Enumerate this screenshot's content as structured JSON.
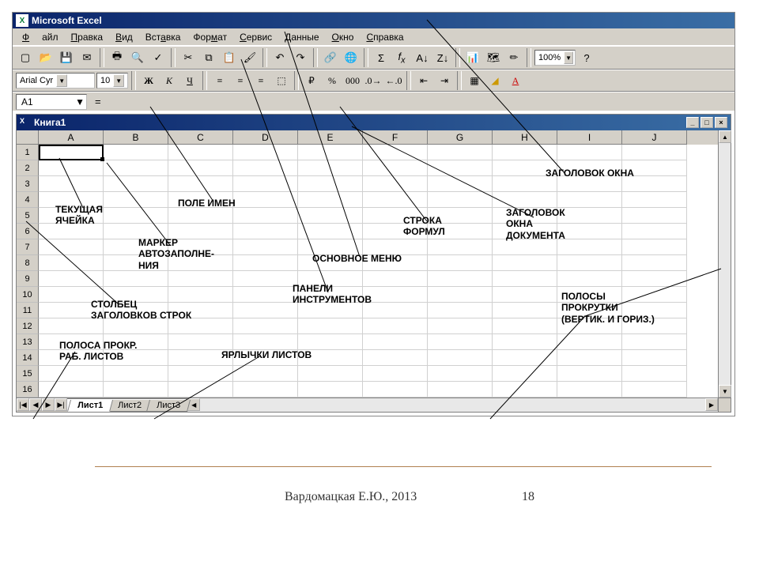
{
  "app": {
    "title": "Microsoft Excel"
  },
  "menu": {
    "file": "Файл",
    "edit": "Правка",
    "view": "Вид",
    "insert": "Вставка",
    "format": "Формат",
    "tools": "Сервис",
    "data": "Данные",
    "window": "Окно",
    "help": "Справка"
  },
  "toolbar": {
    "zoom": "100%",
    "icons": [
      "new",
      "open",
      "save",
      "mail",
      "print",
      "preview",
      "spell",
      "cut",
      "copy",
      "paste",
      "painter",
      "undo",
      "redo",
      "link",
      "sum",
      "fx",
      "sort-asc",
      "sort-desc",
      "chart",
      "map",
      "drawing"
    ]
  },
  "format": {
    "font": "Arial Cyr",
    "size": "10",
    "buttons": [
      "Ж",
      "К",
      "Ч"
    ],
    "currency": "%",
    "dec": ",00"
  },
  "formula": {
    "cellref": "A1",
    "eq": "="
  },
  "doc": {
    "title": "Книга1"
  },
  "columns": [
    "A",
    "B",
    "C",
    "D",
    "E",
    "F",
    "G",
    "H",
    "I",
    "J"
  ],
  "rows": [
    "1",
    "2",
    "3",
    "4",
    "5",
    "6",
    "7",
    "8",
    "9",
    "10",
    "11",
    "12",
    "13",
    "14",
    "15",
    "16"
  ],
  "tabs": {
    "t1": "Лист1",
    "t2": "Лист2",
    "t3": "Лист3"
  },
  "annotations": {
    "title_win": "ЗАГОЛОВОК ОКНА",
    "doc_title": "ЗАГОЛОВОК\nОКНА\nДОКУМЕНТА",
    "formula_row": "СТРОКА\nФОРМУЛ",
    "main_menu": "ОСНОВНОЕ МЕНЮ",
    "toolbars": "ПАНЕЛИ\nИНСТРУМЕНТОВ",
    "name_box": "ПОЛЕ ИМЕН",
    "active_cell": "ТЕКУЩАЯ\nЯЧЕЙКА",
    "fill_handle": "МАРКЕР\nАВТОЗАПОЛНЕ-\nНИЯ",
    "row_headers": "СТОЛБЕЦ\nЗАГОЛОВКОВ СТРОК",
    "sheet_scroll": "ПОЛОСА ПРОКР.\nРАБ. ЛИСТОВ",
    "sheet_tabs": "ЯРЛЫЧКИ ЛИСТОВ",
    "scrollbars": "ПОЛОСЫ\nПРОКРУТКИ\n(ВЕРТИК. И ГОРИЗ.)"
  },
  "footer": {
    "author": "Вардомацкая Е.Ю., 2013",
    "page": "18"
  },
  "colors": {
    "titlebar_start": "#0a246a",
    "titlebar_end": "#3a6ea5",
    "chrome": "#d4d0c8",
    "grid": "#d0d0d0"
  }
}
